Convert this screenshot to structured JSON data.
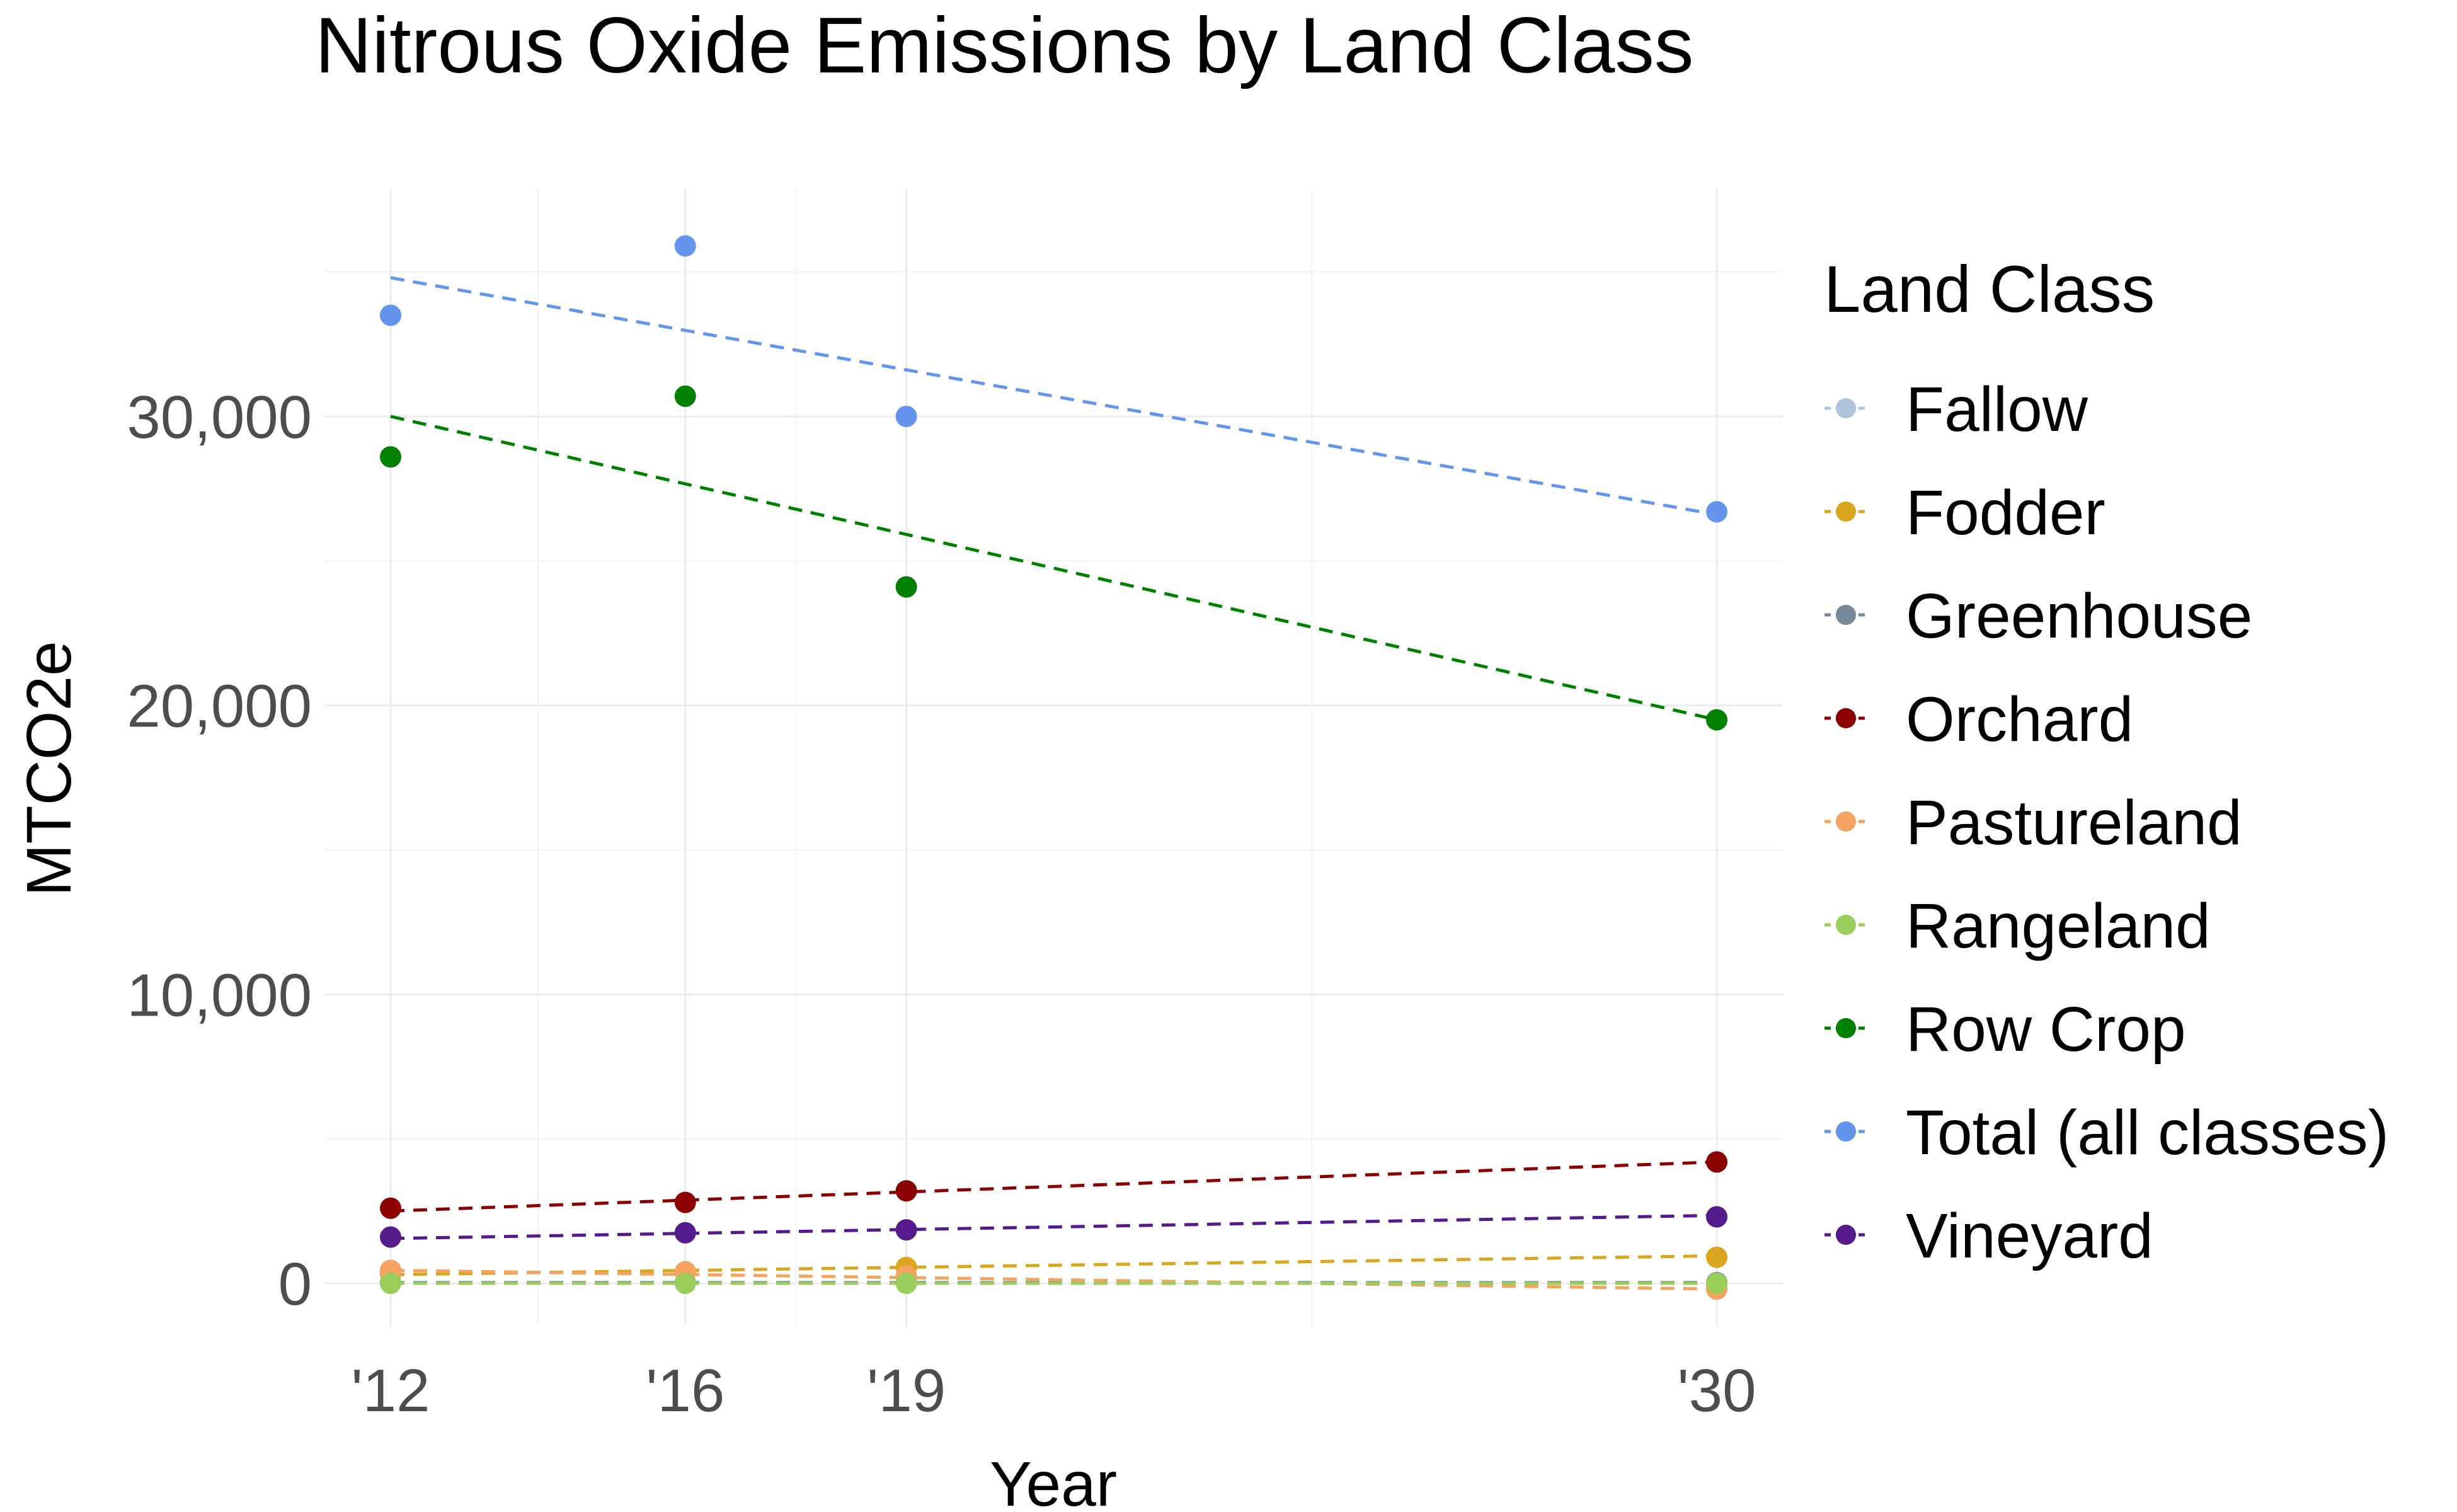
{
  "chart_data": {
    "type": "scatter",
    "title": "Nitrous Oxide Emissions by Land Class",
    "xlabel": "Year",
    "ylabel": "MTCO2e",
    "x_tick_labels": [
      "'12",
      "'16",
      "'19",
      "'30"
    ],
    "x_tick_values": [
      2012,
      2016,
      2019,
      2030
    ],
    "y_tick_labels": [
      "0",
      "10,000",
      "20,000",
      "30,000"
    ],
    "y_tick_values": [
      0,
      10000,
      20000,
      30000
    ],
    "xlim": [
      2011,
      2031
    ],
    "ylim": [
      -1500,
      38000
    ],
    "grid": true,
    "trend_lines": "dashed linear fit per series",
    "legend": {
      "title": "Land Class",
      "position": "right"
    },
    "series": [
      {
        "name": "Fallow",
        "color": "#b0c4de",
        "points": [
          [
            2012,
            30
          ],
          [
            2016,
            30
          ],
          [
            2019,
            30
          ],
          [
            2030,
            30
          ]
        ],
        "trend": [
          [
            2012,
            30
          ],
          [
            2030,
            30
          ]
        ]
      },
      {
        "name": "Fodder",
        "color": "#daa520",
        "points": [
          [
            2012,
            350
          ],
          [
            2016,
            400
          ],
          [
            2019,
            550
          ],
          [
            2030,
            900
          ]
        ],
        "trend": [
          [
            2012,
            300
          ],
          [
            2030,
            950
          ]
        ]
      },
      {
        "name": "Greenhouse",
        "color": "#778899",
        "points": [
          [
            2012,
            20
          ],
          [
            2016,
            20
          ],
          [
            2019,
            20
          ],
          [
            2030,
            20
          ]
        ],
        "trend": [
          [
            2012,
            20
          ],
          [
            2030,
            20
          ]
        ]
      },
      {
        "name": "Orchard",
        "color": "#8b0000",
        "points": [
          [
            2012,
            2600
          ],
          [
            2016,
            2800
          ],
          [
            2019,
            3200
          ],
          [
            2030,
            4200
          ]
        ],
        "trend": [
          [
            2012,
            2500
          ],
          [
            2030,
            4200
          ]
        ]
      },
      {
        "name": "Pastureland",
        "color": "#f4a460",
        "points": [
          [
            2012,
            450
          ],
          [
            2016,
            400
          ],
          [
            2019,
            250
          ],
          [
            2030,
            -200
          ]
        ],
        "trend": [
          [
            2012,
            450
          ],
          [
            2030,
            -200
          ]
        ]
      },
      {
        "name": "Rangeland",
        "color": "#9acd5a",
        "points": [
          [
            2012,
            0
          ],
          [
            2016,
            0
          ],
          [
            2019,
            0
          ],
          [
            2030,
            0
          ]
        ],
        "trend": [
          [
            2012,
            0
          ],
          [
            2030,
            0
          ]
        ]
      },
      {
        "name": "Row Crop",
        "color": "#008000",
        "points": [
          [
            2012,
            28600
          ],
          [
            2016,
            30700
          ],
          [
            2019,
            24100
          ],
          [
            2030,
            19500
          ]
        ],
        "trend": [
          [
            2012,
            30000
          ],
          [
            2030,
            19500
          ]
        ]
      },
      {
        "name": "Total (all classes)",
        "color": "#6495ed",
        "points": [
          [
            2012,
            33500
          ],
          [
            2016,
            35900
          ],
          [
            2019,
            30000
          ],
          [
            2030,
            26700
          ]
        ],
        "trend": [
          [
            2012,
            34800
          ],
          [
            2030,
            26600
          ]
        ]
      },
      {
        "name": "Vineyard",
        "color": "#551a8b",
        "points": [
          [
            2012,
            1600
          ],
          [
            2016,
            1750
          ],
          [
            2019,
            1850
          ],
          [
            2030,
            2300
          ]
        ],
        "trend": [
          [
            2012,
            1550
          ],
          [
            2030,
            2350
          ]
        ]
      }
    ]
  }
}
